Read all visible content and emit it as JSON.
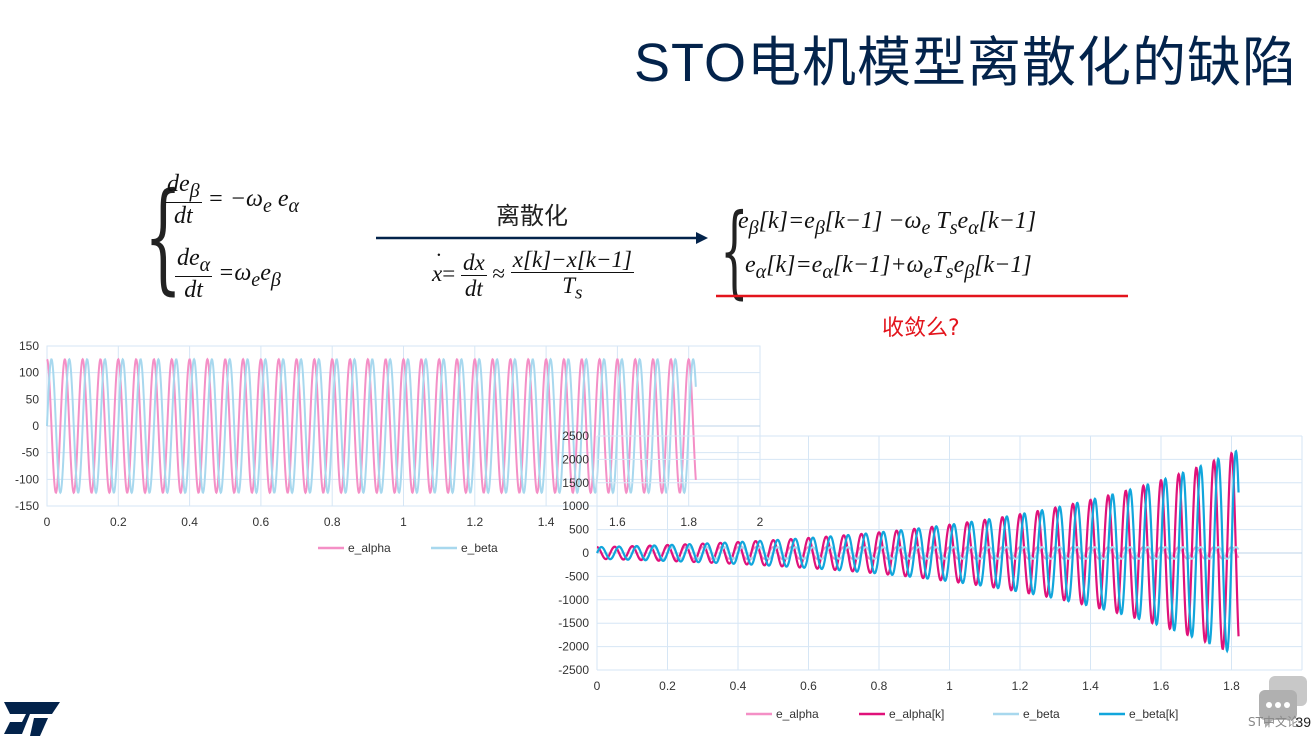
{
  "slide": {
    "title": "STO电机模型离散化的缺陷",
    "page_number": "39",
    "logo": "ST",
    "forum_label": "ST中文论"
  },
  "equations": {
    "left_top_num": "de",
    "left_top_num_sub": "β",
    "left_top_den": "dt",
    "left_top_rhs": "= −ω",
    "left_top_rhs_sub1": "e",
    "left_top_rhs_var": " e",
    "left_top_rhs_sub2": "α",
    "left_bot_num": "de",
    "left_bot_num_sub": "α",
    "left_bot_den": "dt",
    "left_bot_rhs": "=ω",
    "left_bot_rhs_sub1": "e",
    "left_bot_rhs_var": "e",
    "left_bot_rhs_sub2": "β",
    "arrow_label": "离散化",
    "approx_lhs": "x",
    "approx_frac_num": "dx",
    "approx_frac_den": "dt",
    "approx_sym": "≈",
    "approx_num": "x[k]−x[k−1]",
    "approx_den": "T",
    "approx_den_sub": "s",
    "right_top": "e",
    "right_top_sub": "β",
    "right_top_rest1": "[k]=e",
    "right_top_sub2": "β",
    "right_top_rest2": "[k−1] −ω",
    "right_top_sub3": "e",
    "right_top_rest3": " T",
    "right_top_sub4": "s",
    "right_top_rest4": "e",
    "right_top_sub5": "α",
    "right_top_rest5": "[k−1]",
    "right_bot": "e",
    "right_bot_sub": "α",
    "right_bot_rest1": "[k]=e",
    "right_bot_sub2": "α",
    "right_bot_rest2": "[k−1]+ω",
    "right_bot_sub3": "e",
    "right_bot_rest3": "T",
    "right_bot_sub4": "s",
    "right_bot_rest4": "e",
    "right_bot_sub5": "β",
    "right_bot_rest5": "[k−1]",
    "question": "收敛么?"
  },
  "colors": {
    "title": "#03234b",
    "alpha_cont": "#f48fc6",
    "beta_cont": "#a8d8ee",
    "alpha_disc": "#e0127a",
    "beta_disc": "#11a6dc",
    "red_line": "#e3141c"
  },
  "chart_data": [
    {
      "type": "line",
      "x_range": [
        0,
        1.82
      ],
      "ylim": [
        -150,
        150
      ],
      "xlim": [
        0,
        1.82
      ],
      "x_ticks": [
        "0",
        "0.2",
        "0.4",
        "0.6",
        "0.8",
        "1",
        "1.2",
        "1.4",
        "1.6",
        "1.8",
        "2"
      ],
      "y_ticks": [
        "150",
        "100",
        "50",
        "0",
        "-50",
        "-100",
        "-150"
      ],
      "series": [
        {
          "name": "e_alpha",
          "amplitude": 125,
          "frequency_hz": 20,
          "phase": "cos",
          "color": "#f48fc6"
        },
        {
          "name": "e_beta",
          "amplitude": 125,
          "frequency_hz": 20,
          "phase": "sin",
          "color": "#a8d8ee"
        }
      ],
      "legend": [
        "e_alpha",
        "e_beta"
      ],
      "legend_position": "bottom",
      "grid": true
    },
    {
      "type": "line",
      "x_range": [
        0,
        1.82
      ],
      "ylim": [
        -2500,
        2500
      ],
      "xlim": [
        0,
        2
      ],
      "x_ticks": [
        "0",
        "0.2",
        "0.4",
        "0.6",
        "0.8",
        "1",
        "1.2",
        "1.4",
        "1.6",
        "1.8",
        "2"
      ],
      "y_ticks": [
        "2500",
        "2000",
        "1500",
        "1000",
        "500",
        "0",
        "-500",
        "-1000",
        "-1500",
        "-2000",
        "-2500"
      ],
      "series": [
        {
          "name": "e_alpha",
          "amplitude": 125,
          "frequency_hz": 20,
          "phase": "cos",
          "growth": "none",
          "color": "#f48fc6"
        },
        {
          "name": "e_alpha[k]",
          "amplitude_start": 125,
          "amplitude_end": 2200,
          "frequency_hz": 20,
          "phase": "cos",
          "growth": "exponential",
          "color": "#e0127a"
        },
        {
          "name": "e_beta",
          "amplitude": 125,
          "frequency_hz": 20,
          "phase": "sin",
          "growth": "none",
          "color": "#a8d8ee"
        },
        {
          "name": "e_beta[k]",
          "amplitude_start": 125,
          "amplitude_end": 2200,
          "frequency_hz": 20,
          "phase": "sin",
          "growth": "exponential",
          "color": "#11a6dc"
        }
      ],
      "legend": [
        "e_alpha",
        "e_alpha[k]",
        "e_beta",
        "e_beta[k]"
      ],
      "legend_position": "bottom",
      "grid": true
    }
  ]
}
